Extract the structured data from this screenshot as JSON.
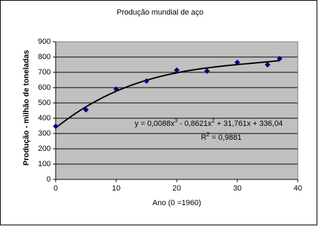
{
  "chart_data": {
    "type": "scatter",
    "title": "Produção mundial de aço",
    "xlabel": "Ano (0 =1960)",
    "ylabel": "Produção - milhão de toneladas",
    "series": [
      {
        "color": "#000080",
        "x": [
          0,
          5,
          10,
          15,
          20,
          25,
          30,
          35,
          37
        ],
        "values": [
          347,
          455,
          590,
          643,
          714,
          708,
          765,
          750,
          790
        ]
      }
    ],
    "xlim": [
      0,
      40
    ],
    "xticks": [
      0,
      10,
      20,
      30,
      40
    ],
    "ylim": [
      0,
      900
    ],
    "yticks": [
      0,
      100,
      200,
      300,
      400,
      500,
      600,
      700,
      800,
      900
    ],
    "grid": true,
    "trendline": {
      "coefficients": [
        0.0088,
        -0.8621,
        31.761,
        336.04
      ],
      "equation": [
        "y = 0,0088x",
        "3",
        " - 0,8621x",
        "2",
        " + 31,761x + 336,04"
      ],
      "r_squared": [
        "R",
        "2",
        " = 0,9881"
      ]
    }
  }
}
